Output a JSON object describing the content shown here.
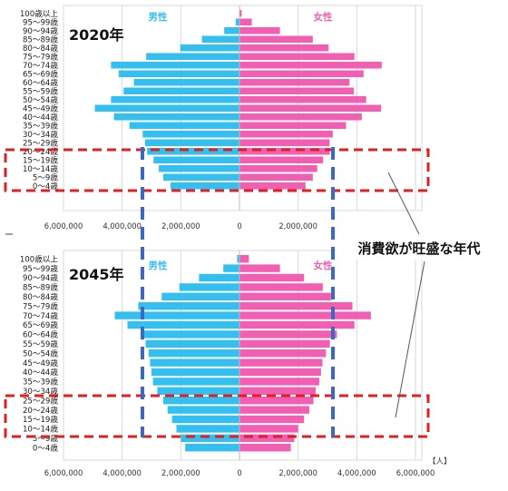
{
  "unit_label": "【人】",
  "annotation": "消費欲が旺盛な年代",
  "colors": {
    "male": "#33bff0",
    "female": "#f25fb2",
    "red_box": "#e02020",
    "blue_line": "#3a68c8",
    "grid": "#d8d8d8"
  },
  "chart_data": [
    {
      "type": "bar",
      "orientation": "horizontal",
      "title": "2020年",
      "series_labels": {
        "male": "男性",
        "female": "女性"
      },
      "categories": [
        "100歳以上",
        "95～99歳",
        "90～94歳",
        "85～89歳",
        "80～84歳",
        "75～79歳",
        "70～74歳",
        "65～69歳",
        "60～64歳",
        "55～59歳",
        "50～54歳",
        "45～49歳",
        "40～44歳",
        "35～39歳",
        "30～34歳",
        "25～29歳",
        "20～24歳",
        "15～19歳",
        "10～14歳",
        "5～9歳",
        "0～4歳"
      ],
      "series": [
        {
          "name": "男性",
          "values": [
            15000,
            130000,
            520000,
            1280000,
            2020000,
            3180000,
            4380000,
            4120000,
            3600000,
            3950000,
            4380000,
            4930000,
            4280000,
            3750000,
            3300000,
            3220000,
            3150000,
            2930000,
            2750000,
            2600000,
            2350000
          ]
        },
        {
          "name": "女性",
          "values": [
            75000,
            420000,
            1380000,
            2500000,
            3040000,
            3920000,
            4850000,
            4230000,
            3750000,
            3900000,
            4320000,
            4830000,
            4170000,
            3630000,
            3180000,
            3070000,
            3080000,
            2850000,
            2650000,
            2500000,
            2250000
          ]
        }
      ],
      "xlim": [
        -6000000,
        6000000
      ],
      "x_ticks": [
        "6,000,000",
        "4,000,000",
        "2,000,000",
        "0",
        "2,000,000"
      ]
    },
    {
      "type": "bar",
      "orientation": "horizontal",
      "title": "2045年",
      "series_labels": {
        "male": "男性",
        "female": "女性"
      },
      "categories": [
        "100歳以上",
        "95～99歳",
        "90～94歳",
        "85～89歳",
        "80～84歳",
        "75～79歳",
        "70～74歳",
        "65～69歳",
        "60～64歳",
        "55～59歳",
        "50～54歳",
        "45～49歳",
        "40～44歳",
        "35～39歳",
        "30～34歳",
        "25～29歳",
        "20～24歳",
        "15～19歳",
        "10～14歳",
        "5～9歳",
        "0～4歳"
      ],
      "series": [
        {
          "name": "男性",
          "values": [
            80000,
            550000,
            1380000,
            2050000,
            2650000,
            3450000,
            4250000,
            3820000,
            3350000,
            3200000,
            3100000,
            3050000,
            3000000,
            2950000,
            2800000,
            2600000,
            2450000,
            2300000,
            2150000,
            2000000,
            1850000
          ]
        },
        {
          "name": "女性",
          "values": [
            320000,
            1380000,
            2200000,
            2840000,
            3120000,
            3850000,
            4480000,
            3920000,
            3320000,
            3080000,
            2950000,
            2830000,
            2780000,
            2720000,
            2600000,
            2520000,
            2380000,
            2200000,
            2000000,
            1870000,
            1750000
          ]
        }
      ],
      "xlim": [
        -6000000,
        6000000
      ],
      "x_ticks": [
        "6,000,000",
        "4,000,000",
        "2,000,000",
        "0",
        "2,000,000",
        "4,000,000",
        "6,000,000"
      ]
    }
  ]
}
